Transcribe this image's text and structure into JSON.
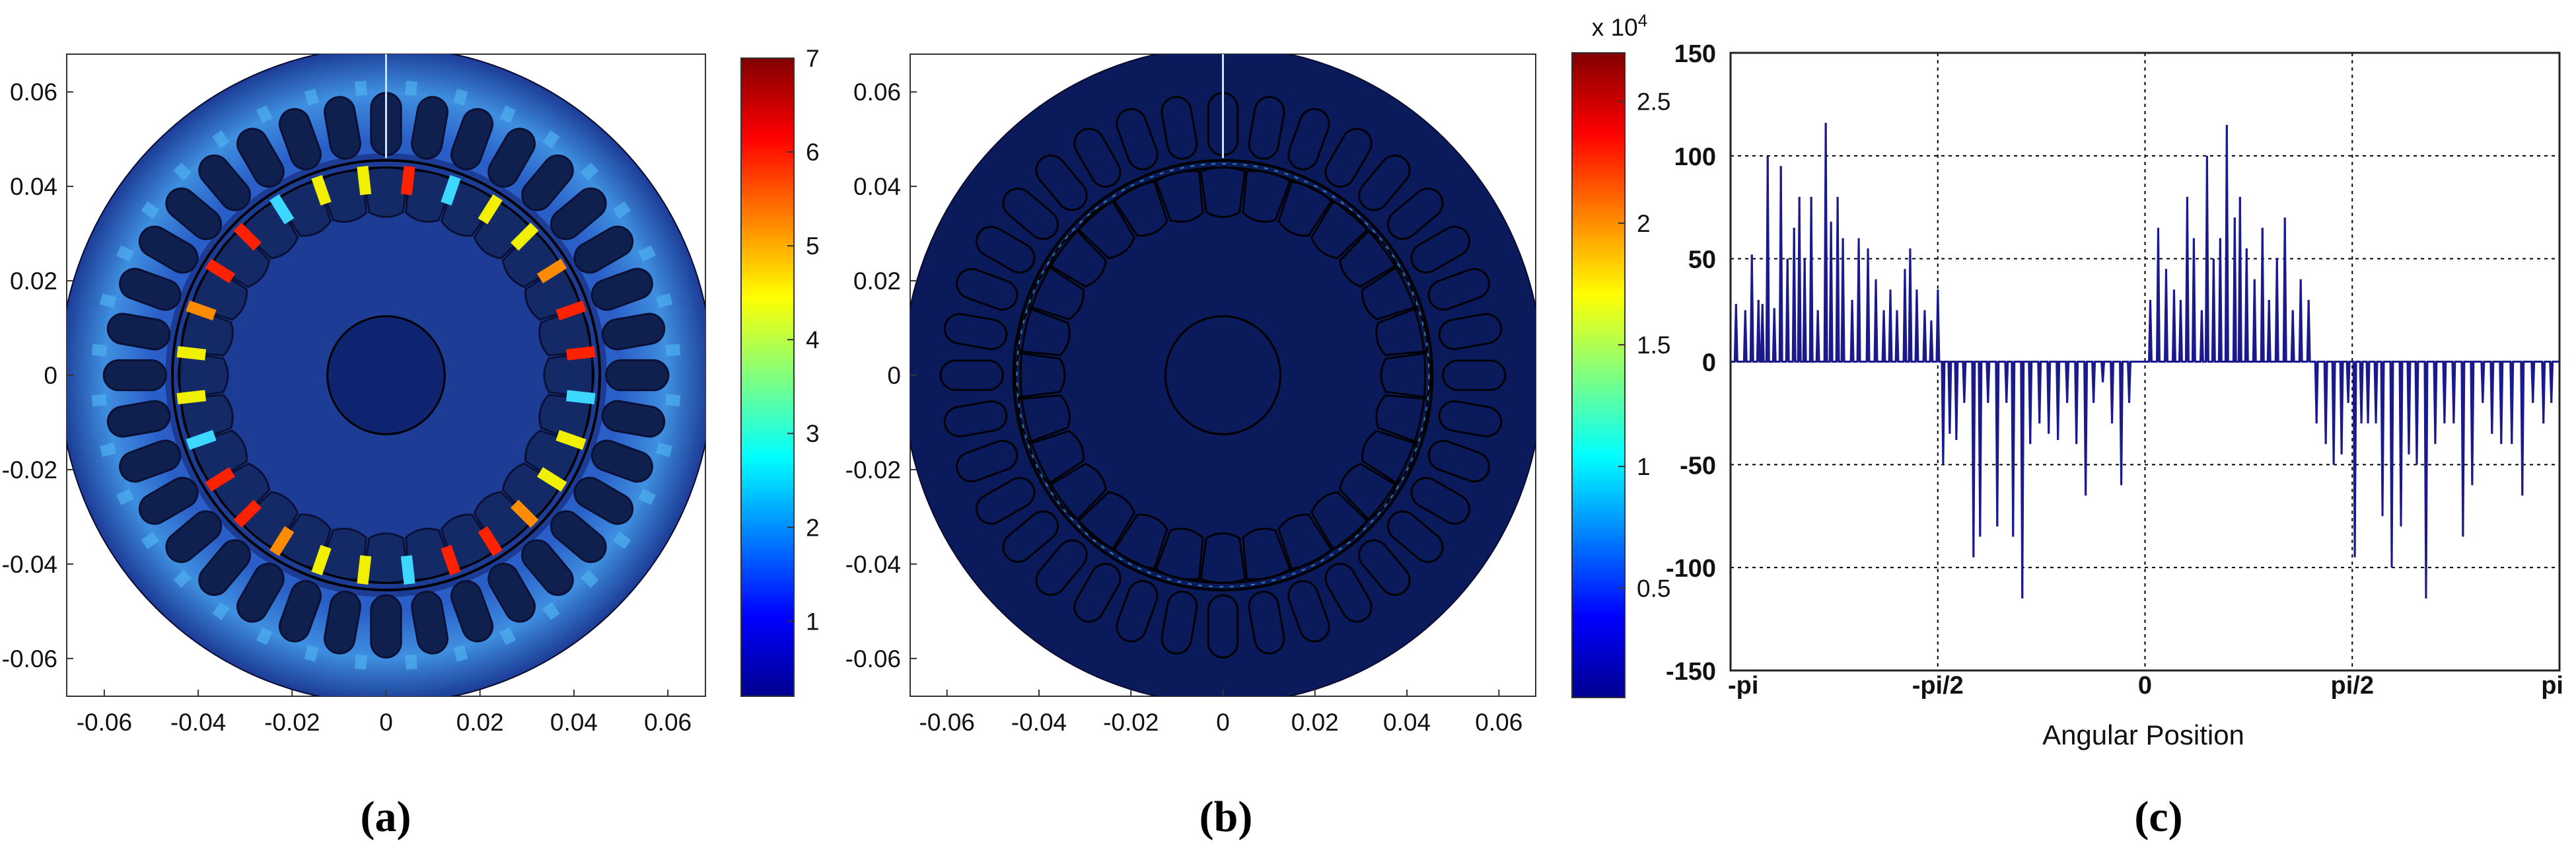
{
  "chart_data": [
    {
      "panel_label": "(a)",
      "type": "heatmap",
      "xticks": [
        "-0.06",
        "-0.04",
        "-0.02",
        "0",
        "0.02",
        "0.04",
        "0.06"
      ],
      "yticks": [
        "0.06",
        "0.04",
        "0.02",
        "0",
        "-0.02",
        "-0.04",
        "-0.06"
      ],
      "xlim": [
        -0.068,
        0.068
      ],
      "ylim": [
        -0.068,
        0.068
      ],
      "colorbar": {
        "min": 0.2,
        "max": 7,
        "ticks": [
          "1",
          "2",
          "3",
          "4",
          "5",
          "6",
          "7"
        ],
        "exponent": ""
      },
      "colormap": "jet",
      "background_color": "#1c3c96",
      "hotspot_colors": [
        "#ff2200",
        "#ff8c00",
        "#f0f000",
        "#3cd8ff"
      ],
      "grid": false
    },
    {
      "panel_label": "(b)",
      "type": "heatmap",
      "xticks": [
        "-0.06",
        "-0.04",
        "-0.02",
        "0",
        "0.02",
        "0.04",
        "0.06"
      ],
      "yticks": [
        "0.06",
        "0.04",
        "0.02",
        "0",
        "-0.02",
        "-0.04",
        "-0.06"
      ],
      "xlim": [
        -0.068,
        0.068
      ],
      "ylim": [
        -0.068,
        0.068
      ],
      "colorbar": {
        "min": 0.05,
        "max": 2.7,
        "ticks": [
          "0.5",
          "1",
          "1.5",
          "2",
          "2.5"
        ],
        "exponent": "x 10^4"
      },
      "colormap": "jet",
      "background_color": "#0a1a5a",
      "grid": false
    },
    {
      "panel_label": "(c)",
      "type": "line",
      "xlabel": "Angular Position",
      "ylabel": "",
      "xticks": [
        "-pi",
        "-pi/2",
        "0",
        "pi/2",
        "pi"
      ],
      "yticks": [
        "150",
        "100",
        "50",
        "0",
        "-50",
        "-100",
        "-150"
      ],
      "xlim": [
        -3.1416,
        3.1416
      ],
      "ylim": [
        -150,
        150
      ],
      "grid": true,
      "line_color": "#1a1a8c",
      "series": [
        {
          "x": [
            -3.1,
            -3.03,
            -2.98,
            -2.93,
            -2.9,
            -2.86,
            -2.81,
            -2.76,
            -2.71,
            -2.66,
            -2.62,
            -2.58,
            -2.53,
            -2.48,
            -2.42,
            -2.38,
            -2.33,
            -2.29,
            -2.22,
            -2.17,
            -2.1,
            -2.04,
            -1.98,
            -1.93,
            -1.88,
            -1.82,
            -1.78,
            -1.73,
            -1.67,
            -1.62,
            -1.57,
            -1.53,
            -1.48,
            -1.43,
            -1.37,
            -1.3,
            -1.25,
            -1.19,
            -1.12,
            -1.05,
            -1.0,
            -0.93,
            -0.87,
            -0.8,
            -0.73,
            -0.66,
            -0.59,
            -0.52,
            -0.45,
            -0.39,
            -0.32,
            -0.25,
            -0.18,
            -0.12,
            0.04,
            0.1,
            0.16,
            0.22,
            0.27,
            0.32,
            0.37,
            0.43,
            0.47,
            0.52,
            0.57,
            0.62,
            0.68,
            0.72,
            0.77,
            0.83,
            0.89,
            0.94,
            1.0,
            1.06,
            1.12,
            1.18,
            1.24,
            1.3,
            1.37,
            1.43,
            1.49,
            1.54,
            1.59,
            1.64,
            1.69,
            1.75,
            1.8,
            1.87,
            1.94,
            2.0,
            2.06,
            2.13,
            2.2,
            2.27,
            2.34,
            2.41,
            2.48,
            2.56,
            2.63,
            2.7,
            2.78,
            2.86,
            2.94,
            3.02,
            3.08
          ],
          "y": [
            28,
            25,
            52,
            30,
            28,
            100,
            26,
            95,
            50,
            65,
            80,
            50,
            80,
            25,
            116,
            68,
            80,
            60,
            30,
            60,
            55,
            40,
            25,
            35,
            25,
            45,
            55,
            35,
            25,
            20,
            35,
            -50,
            -35,
            -38,
            -20,
            -95,
            -85,
            -20,
            -80,
            -20,
            -85,
            -115,
            -40,
            -30,
            -35,
            -38,
            -20,
            -40,
            -65,
            -20,
            -10,
            -30,
            -60,
            -20,
            30,
            65,
            45,
            35,
            30,
            80,
            60,
            25,
            100,
            50,
            60,
            115,
            70,
            80,
            55,
            40,
            65,
            30,
            50,
            70,
            25,
            40,
            30,
            -30,
            -40,
            -50,
            -45,
            -20,
            -95,
            -30,
            -30,
            -30,
            -75,
            -100,
            -80,
            -45,
            -50,
            -115,
            -40,
            -30,
            -30,
            -85,
            -60,
            -20,
            -35,
            -40,
            -40,
            -65,
            -20,
            -30,
            -20
          ]
        }
      ]
    }
  ]
}
